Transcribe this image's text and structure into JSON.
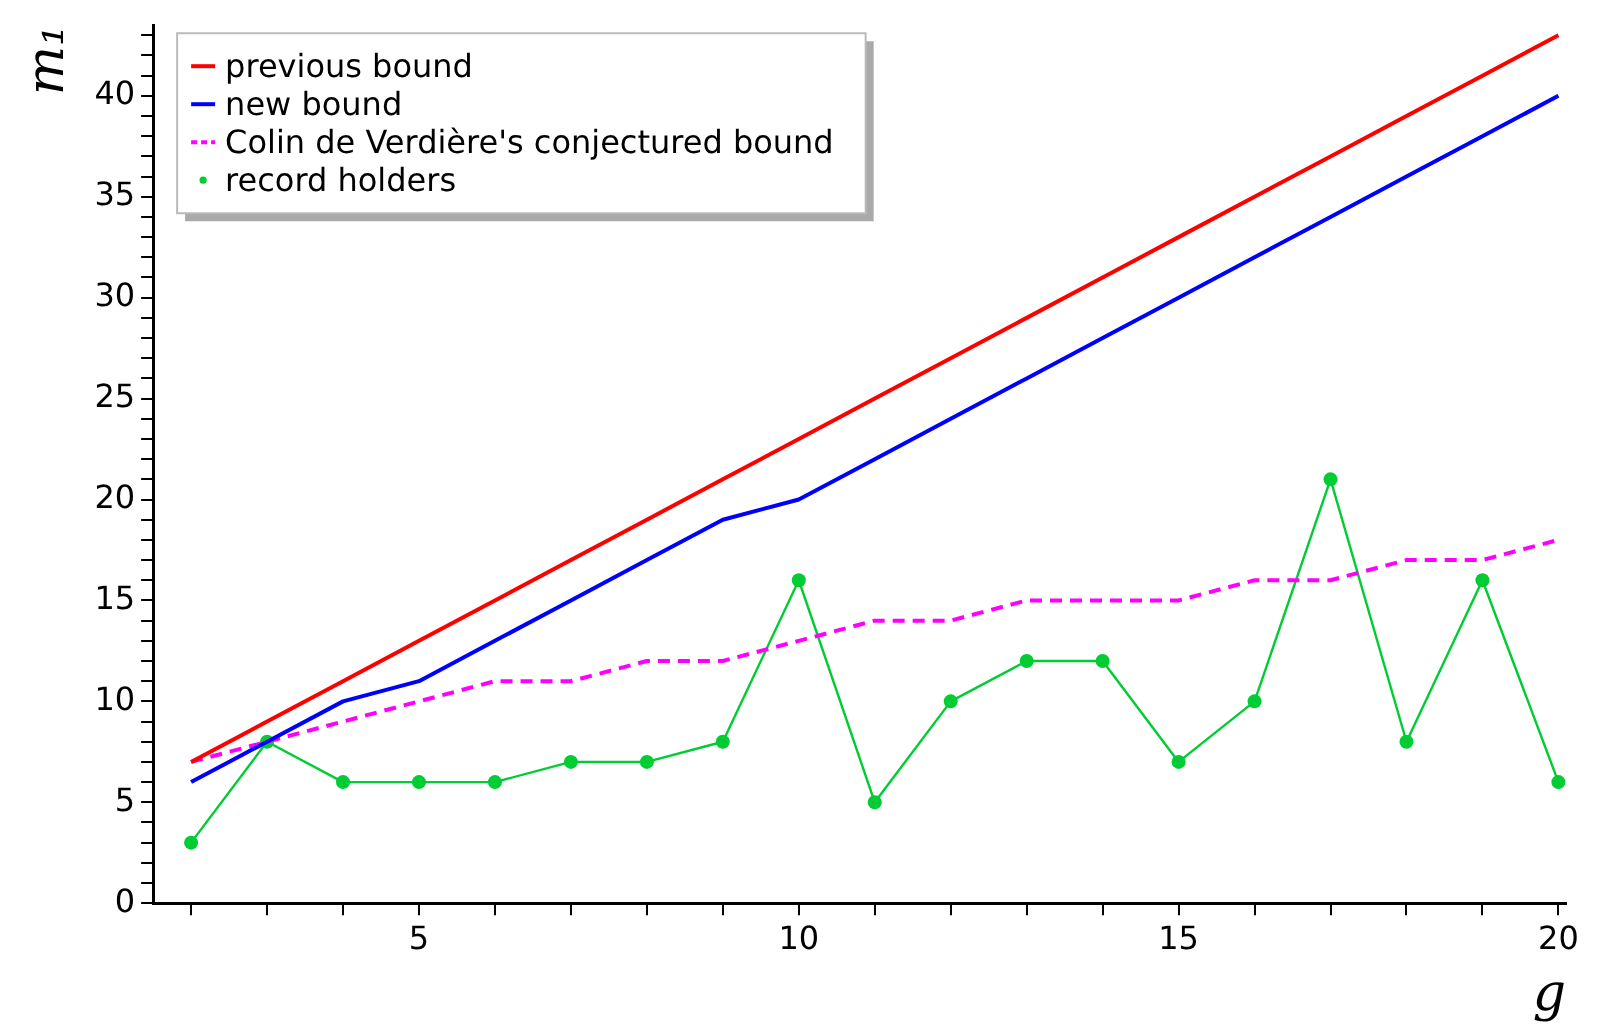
{
  "chart_data": {
    "type": "line",
    "xlabel": "g",
    "ylabel": "m₁",
    "x": [
      2,
      3,
      4,
      5,
      6,
      7,
      8,
      9,
      10,
      11,
      12,
      13,
      14,
      15,
      16,
      17,
      18,
      19,
      20
    ],
    "series": [
      {
        "name": "previous bound",
        "color": "#ff0000",
        "marker": "none",
        "line_style": "solid",
        "values": [
          7,
          9,
          11,
          13,
          15,
          17,
          19,
          21,
          23,
          25,
          27,
          29,
          31,
          33,
          35,
          37,
          39,
          41,
          43
        ]
      },
      {
        "name": "new bound",
        "color": "#0000ff",
        "marker": "none",
        "line_style": "solid",
        "values": [
          6,
          8,
          10,
          11,
          13,
          15,
          17,
          19,
          20,
          22,
          24,
          26,
          28,
          30,
          32,
          34,
          36,
          38,
          40
        ]
      },
      {
        "name": "Colin de Verdière's conjectured bound",
        "color": "#ff00ff",
        "marker": "none",
        "line_style": "dashed",
        "values": [
          7,
          8,
          9,
          10,
          11,
          11,
          12,
          12,
          13,
          14,
          14,
          15,
          15,
          15,
          16,
          16,
          17,
          17,
          18
        ]
      },
      {
        "name": "record holders",
        "color": "#00cc33",
        "marker": "circle",
        "line_style": "solid",
        "values": [
          3,
          8,
          6,
          6,
          6,
          7,
          7,
          8,
          16,
          5,
          10,
          12,
          12,
          7,
          10,
          21,
          8,
          16,
          6
        ]
      }
    ],
    "xlim": [
      1.5,
      20.1
    ],
    "ylim": [
      0,
      43.5
    ],
    "xticks": [
      {
        "value": 2,
        "label": null
      },
      {
        "value": 3,
        "label": null
      },
      {
        "value": 4,
        "label": null
      },
      5,
      {
        "value": 6,
        "label": null
      },
      {
        "value": 7,
        "label": null
      },
      {
        "value": 8,
        "label": null
      },
      {
        "value": 9,
        "label": null
      },
      10,
      {
        "value": 11,
        "label": null
      },
      {
        "value": 12,
        "label": null
      },
      {
        "value": 13,
        "label": null
      },
      {
        "value": 14,
        "label": null
      },
      15,
      {
        "value": 16,
        "label": null
      },
      {
        "value": 17,
        "label": null
      },
      {
        "value": 18,
        "label": null
      },
      {
        "value": 19,
        "label": null
      },
      20
    ],
    "yticks": [
      0,
      5,
      10,
      15,
      20,
      25,
      30,
      35,
      40
    ],
    "grid": false,
    "legend": "top left"
  }
}
